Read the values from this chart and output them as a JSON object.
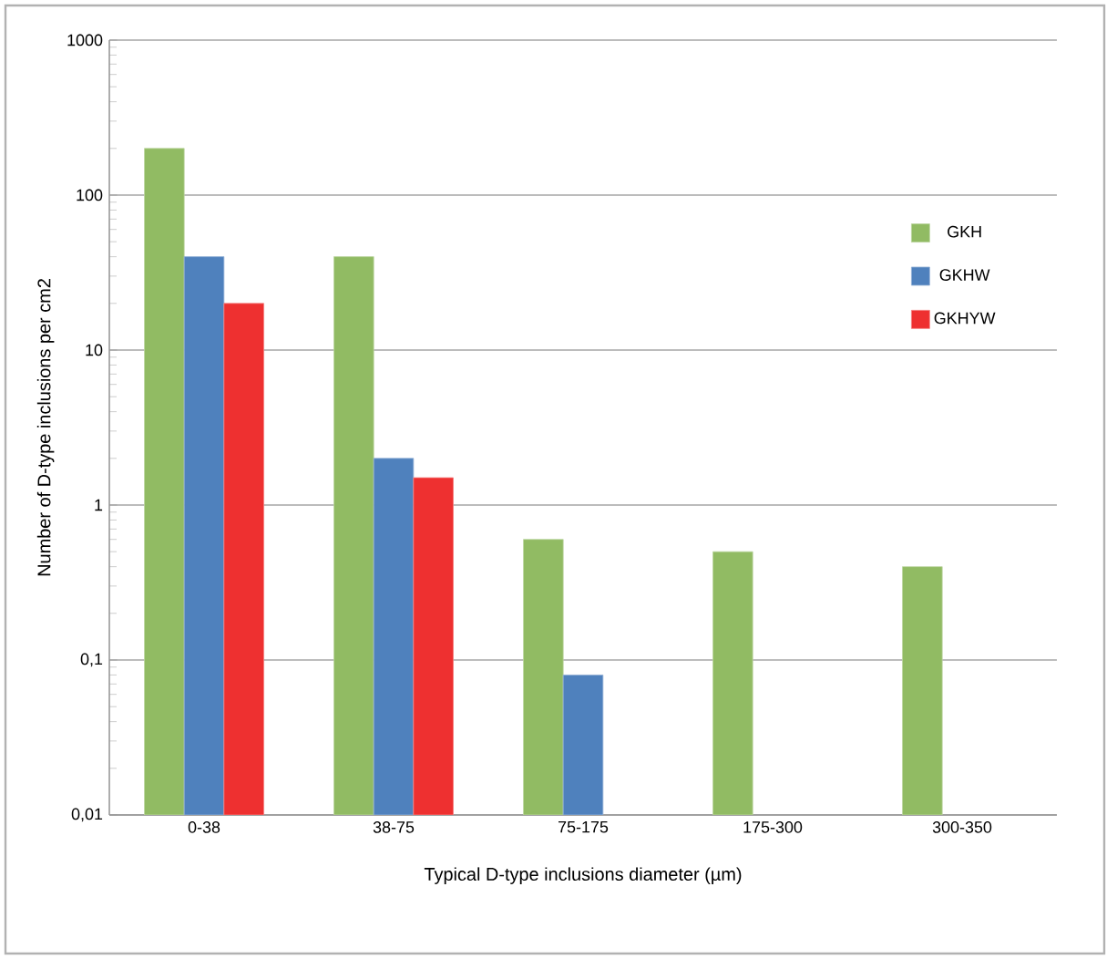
{
  "chart_data": {
    "type": "bar",
    "xlabel": "Typical D-type inclusions diameter (µm)",
    "ylabel": "Number of D-type inclusions per cm2",
    "categories": [
      "0-38",
      "38-75",
      "75-175",
      "175-300",
      "300-350"
    ],
    "series": [
      {
        "name": "GKH",
        "color": "#91bb63",
        "values": [
          200,
          40,
          0.6,
          0.5,
          0.4
        ]
      },
      {
        "name": "GKHW",
        "color": "#4f81bd",
        "values": [
          40,
          2,
          0.08,
          null,
          null
        ]
      },
      {
        "name": "GKHYW",
        "color": "#ee3030",
        "values": [
          20,
          1.5,
          null,
          null,
          null
        ]
      }
    ],
    "log": "y",
    "ylim": [
      0.01,
      1000
    ],
    "yticks": [
      {
        "value": 0.01,
        "label": "0,01"
      },
      {
        "value": 0.1,
        "label": "0,1"
      },
      1,
      10,
      100,
      1000
    ],
    "grid": "y",
    "legend": "right"
  }
}
